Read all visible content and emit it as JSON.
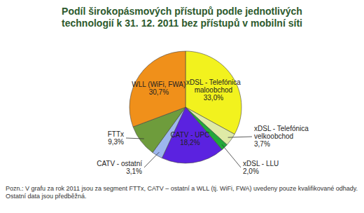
{
  "chart_data": {
    "type": "pie",
    "title": "Podíl širokopásmových přístupů podle jednotlivých technologií k 31. 12. 2011 bez přístupů v mobilní síti",
    "categories": [
      "xDSL - Telefónica maloobchod",
      "xDSL - Telefónica velkoobchod",
      "xDSL - LLU",
      "CATV - UPC",
      "CATV - ostatní",
      "FTTx",
      "WLL (WiFi, FWA)"
    ],
    "values": [
      33.0,
      3.7,
      2.0,
      18.2,
      3.1,
      9.3,
      30.7
    ],
    "value_labels": [
      "33,0%",
      "3,7%",
      "2,0%",
      "18,2%",
      "3,1%",
      "9,3%",
      "30,7%"
    ],
    "colors": [
      "#f2f21e",
      "#dfeaa6",
      "#22a83a",
      "#5b22e0",
      "#9db6ee",
      "#6e9c3c",
      "#f0901a"
    ],
    "data_labels": true,
    "annotations": [
      "Pozn.: V grafu za rok 2011 jsou za segment FTTx, CATV – ostatní a WLL (tj. WiFi, FWA) uvedeny pouze kvalifikované odhady. Ostatní data jsou předběžná."
    ]
  }
}
